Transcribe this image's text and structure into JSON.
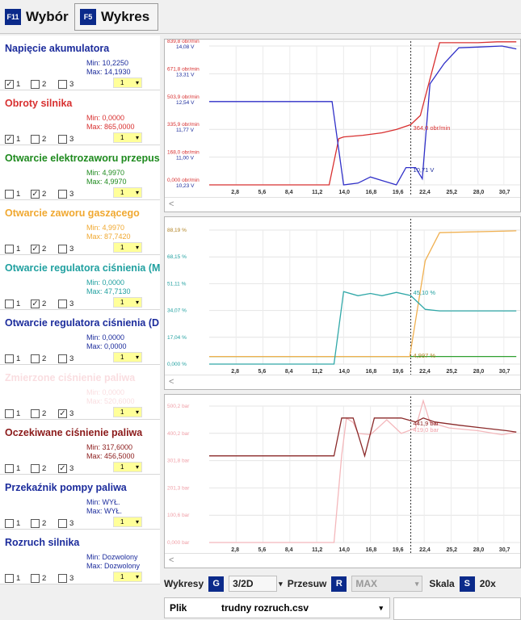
{
  "tabs": [
    {
      "key": "F11",
      "label": "Wybór"
    },
    {
      "key": "F5",
      "label": "Wykres"
    }
  ],
  "signals": [
    {
      "name": "Napięcie akumulatora",
      "color": "#1c2c9c",
      "min": "Min: 10,2250",
      "max": "Max: 14,1930",
      "checks": [
        true,
        false,
        false
      ],
      "select": "1",
      "dim": false
    },
    {
      "name": "Obroty silnika",
      "color": "#d83030",
      "min": "Min: 0,0000",
      "max": "Max: 865,0000",
      "checks": [
        true,
        false,
        false
      ],
      "select": "1",
      "dim": false
    },
    {
      "name": "Otwarcie elektrozaworu przepus",
      "color": "#1e8a1e",
      "min": "Min: 4,9970",
      "max": "Max: 4,9970",
      "checks": [
        false,
        true,
        false
      ],
      "select": "1",
      "dim": false
    },
    {
      "name": "Otwarcie zaworu gaszącego",
      "color": "#f0a830",
      "min": "Min: 4,9970",
      "max": "Max: 87,7420",
      "checks": [
        false,
        true,
        false
      ],
      "select": "1",
      "dim": false
    },
    {
      "name": "Otwarcie regulatora ciśnienia (M",
      "color": "#20a0a0",
      "min": "Min: 0,0000",
      "max": "Max: 47,7130",
      "checks": [
        false,
        true,
        false
      ],
      "select": "1",
      "dim": false
    },
    {
      "name": "Otwarcie regulatora ciśnienia (D",
      "color": "#1c2c9c",
      "min": "Min: 0,0000",
      "max": "Max: 0,0000",
      "checks": [
        false,
        false,
        false
      ],
      "select": "1",
      "dim": false
    },
    {
      "name": "Zmierzone ciśnienie paliwa",
      "color": "#f0a0a8",
      "min": "Min: 0,0000",
      "max": "Max: 520,6000",
      "checks": [
        false,
        false,
        true
      ],
      "select": "1",
      "dim": true
    },
    {
      "name": "Oczekiwane ciśnienie paliwa",
      "color": "#8b1a1a",
      "min": "Min: 317,6000",
      "max": "Max: 456,5000",
      "checks": [
        false,
        false,
        true
      ],
      "select": "1",
      "dim": false
    },
    {
      "name": "Przekaźnik pompy paliwa",
      "color": "#1c2c9c",
      "min": "Min: WYŁ.",
      "max": "Max: WYŁ.",
      "checks": [
        false,
        false,
        false
      ],
      "select": "1",
      "dim": false
    },
    {
      "name": "Rozruch silnika",
      "color": "#1c2c9c",
      "min": "Min: Dozwolony",
      "max": "Max: Dozwolony",
      "checks": [
        false,
        false,
        false
      ],
      "select": "1",
      "dim": false
    }
  ],
  "check_labels": [
    "1",
    "2",
    "3"
  ],
  "x_ticks": [
    "2,8",
    "5,6",
    "8,4",
    "11,2",
    "14,0",
    "16,8",
    "19,6",
    "22,4",
    "25,2",
    "28,0",
    "30,7"
  ],
  "charts": [
    {
      "y_labels": [
        {
          "a": "839,8 obr/min",
          "b": "14,08 V",
          "ca": "#d83030",
          "cb": "#1c2c9c"
        },
        {
          "a": "671,8 obr/min",
          "b": "13,31 V",
          "ca": "#d83030",
          "cb": "#1c2c9c"
        },
        {
          "a": "503,9 obr/min",
          "b": "12,54 V",
          "ca": "#d83030",
          "cb": "#1c2c9c"
        },
        {
          "a": "335,9 obr/min",
          "b": "11,77 V",
          "ca": "#d83030",
          "cb": "#1c2c9c"
        },
        {
          "a": "168,0 obr/min",
          "b": "11,00 V",
          "ca": "#d83030",
          "cb": "#1c2c9c"
        },
        {
          "a": "0,000 obr/min",
          "b": "10,23 V",
          "ca": "#d83030",
          "cb": "#1c2c9c"
        }
      ],
      "cursor_labels": [
        {
          "text": "364,0 obr/min",
          "color": "#d83030"
        },
        {
          "text": "10,71 V",
          "color": "#1c2c9c"
        }
      ]
    },
    {
      "y_labels": [
        {
          "a": "88,19 %",
          "ca": "#b08020"
        },
        {
          "a": "68,15 %",
          "ca": "#20a0a0"
        },
        {
          "a": "51,11 %",
          "ca": "#20a0a0"
        },
        {
          "a": "34,07 %",
          "ca": "#20a0a0"
        },
        {
          "a": "17,04 %",
          "ca": "#20a0a0"
        },
        {
          "a": "0,000 %",
          "ca": "#20a0a0"
        }
      ],
      "cursor_labels": [
        {
          "text": "45,10 %",
          "color": "#20a0a0"
        },
        {
          "text": "4,997 %",
          "color": "#b08020"
        }
      ]
    },
    {
      "y_labels": [
        {
          "a": "500,2 bar",
          "ca": "#f0a0a8"
        },
        {
          "a": "400,2 bar",
          "ca": "#f0a0a8"
        },
        {
          "a": "301,8 bar",
          "ca": "#f0a0a8"
        },
        {
          "a": "201,3 bar",
          "ca": "#f0a0a8"
        },
        {
          "a": "100,6 bar",
          "ca": "#f0a0a8"
        },
        {
          "a": "0,000 bar",
          "ca": "#f0a0a8"
        }
      ],
      "cursor_labels": [
        {
          "text": "441,9 bar",
          "color": "#8b1a1a"
        },
        {
          "text": "419,0 bar",
          "color": "#f0a0a8"
        }
      ]
    }
  ],
  "controls": {
    "wykresy_label": "Wykresy",
    "wykresy_key": "G",
    "wykresy_value": "3/2D",
    "przesuw_label": "Przesuw",
    "przesuw_key": "R",
    "przesuw_value": "MAX",
    "skala_label": "Skala",
    "skala_key": "S",
    "skala_value": "20x"
  },
  "file": {
    "label": "Plik",
    "name": "trudny rozruch.csv"
  },
  "series": {
    "chart1": {
      "rpm": [
        [
          0,
          0
        ],
        [
          12.5,
          0
        ],
        [
          13.5,
          280
        ],
        [
          14.0,
          290
        ],
        [
          16.0,
          300
        ],
        [
          18.0,
          315
        ],
        [
          19.5,
          335
        ],
        [
          21.0,
          364
        ],
        [
          22.0,
          420
        ],
        [
          24.0,
          860
        ],
        [
          26.0,
          860
        ],
        [
          28.0,
          860
        ],
        [
          30.0,
          865
        ],
        [
          32.0,
          865
        ]
      ],
      "volt": [
        [
          0,
          12.54
        ],
        [
          12.8,
          12.54
        ],
        [
          14.0,
          10.23
        ],
        [
          15.5,
          10.28
        ],
        [
          16.8,
          10.45
        ],
        [
          18.0,
          10.35
        ],
        [
          19.5,
          10.23
        ],
        [
          20.5,
          10.71
        ],
        [
          21.5,
          10.71
        ],
        [
          22.2,
          10.4
        ],
        [
          23.0,
          13.03
        ],
        [
          24.5,
          13.6
        ],
        [
          26.0,
          14.03
        ],
        [
          28.0,
          14.05
        ],
        [
          30.5,
          14.08
        ],
        [
          32.0,
          14.0
        ]
      ]
    },
    "chart2": {
      "gasz": [
        [
          0,
          4.997
        ],
        [
          20.9,
          4.997
        ],
        [
          22.5,
          68.0
        ],
        [
          24.0,
          86.5
        ],
        [
          32,
          87.7
        ]
      ],
      "regM": [
        [
          0,
          0
        ],
        [
          13.0,
          0
        ],
        [
          14.0,
          47.7
        ],
        [
          15.5,
          45.0
        ],
        [
          16.8,
          46.5
        ],
        [
          18.0,
          45.0
        ],
        [
          19.5,
          47.2
        ],
        [
          21.0,
          45.1
        ],
        [
          22.5,
          36.0
        ],
        [
          24.0,
          35.0
        ],
        [
          27.0,
          35.0
        ],
        [
          32.0,
          35.0
        ]
      ],
      "elektro": [
        [
          0,
          4.997
        ],
        [
          32,
          4.997
        ]
      ]
    },
    "chart3": {
      "zmierzone": [
        [
          0,
          0
        ],
        [
          12.5,
          0
        ],
        [
          13.0,
          0
        ],
        [
          13.8,
          320
        ],
        [
          14.3,
          456
        ],
        [
          15.0,
          440
        ],
        [
          15.5,
          400
        ],
        [
          16.8,
          395
        ],
        [
          18.5,
          450
        ],
        [
          20.0,
          400
        ],
        [
          21.5,
          419
        ],
        [
          22.3,
          520
        ],
        [
          23.0,
          440
        ],
        [
          25.0,
          420
        ],
        [
          28.0,
          410
        ],
        [
          30.5,
          395
        ],
        [
          32.0,
          405
        ]
      ],
      "oczekiwane": [
        [
          0,
          317.6
        ],
        [
          13.0,
          317.6
        ],
        [
          13.8,
          456.5
        ],
        [
          15.0,
          456.5
        ],
        [
          16.2,
          317.6
        ],
        [
          17.2,
          456.5
        ],
        [
          20.0,
          456.5
        ],
        [
          21.5,
          441.9
        ],
        [
          22.3,
          456.5
        ],
        [
          23.5,
          441.9
        ],
        [
          26.0,
          430
        ],
        [
          28.5,
          420
        ],
        [
          31.0,
          410
        ],
        [
          32.0,
          405
        ]
      ]
    }
  },
  "colors": {
    "rpm": "#d83030",
    "volt": "#3030c8",
    "gasz": "#f0b050",
    "regM": "#30a8a8",
    "elektro": "#30a030",
    "zmierzone": "#f4b8bc",
    "oczekiwane": "#8b2a2a",
    "keycap": "#0b2a8a",
    "select_bg": "#ffff99"
  }
}
